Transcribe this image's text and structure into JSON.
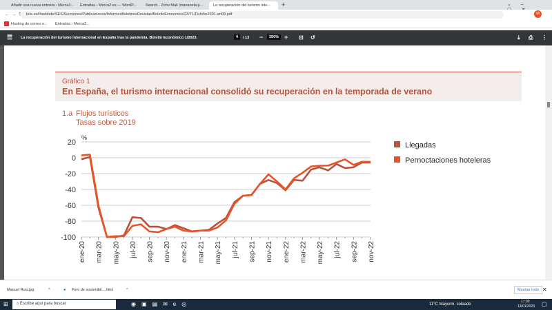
{
  "browser": {
    "tabs": [
      "Añadir una nueva entrada ‹ Merca2...",
      "Entradas ‹ Merca2.es — WordP...",
      "Search - Zoho Mail (mananela.p...",
      "La recuperación del turismo inte..."
    ],
    "url": "bde.es/f/webbde/SES/Secciones/Publicaciones/InformesBoletinesRevistas/BoletinEconomico/23/T1/Fich/be2301-art08.pdf",
    "bookmarks": [
      "Hosting de correo e...",
      "Entradas ‹ Merca2..."
    ],
    "profile": "M"
  },
  "pdf": {
    "title": "La recuperación del turismo internacional en España tras la pandemia. Boletín Económico 1/2023.",
    "page": "4",
    "pages": "/ 13",
    "zoom": "250%"
  },
  "figure": {
    "label": "Gráfico 1",
    "headline": "En España, el turismo internacional consolidó su recuperación en la temporada de verano",
    "subtitle_num": "1.a",
    "subtitle": "Flujos turísticos",
    "subtitle2": "Tasas sobre 2019",
    "unit": "%"
  },
  "chart_data": {
    "type": "line",
    "ylim": [
      -100,
      20
    ],
    "yticks": [
      20,
      0,
      -20,
      -40,
      -60,
      -80,
      -100
    ],
    "grid": true,
    "legend": "right",
    "x": [
      "ene-20",
      "feb-20",
      "mar-20",
      "abr-20",
      "may-20",
      "jun-20",
      "jul-20",
      "ago-20",
      "sep-20",
      "oct-20",
      "nov-20",
      "dic-20",
      "ene-21",
      "feb-21",
      "mar-21",
      "abr-21",
      "may-21",
      "jun-21",
      "jul-21",
      "ago-21",
      "sep-21",
      "oct-21",
      "nov-21",
      "dic-21",
      "ene-22",
      "feb-22",
      "mar-22",
      "abr-22",
      "may-22",
      "jun-22",
      "jul-22",
      "ago-22",
      "sep-22",
      "oct-22",
      "nov-22"
    ],
    "xticklabels": [
      "ene-20",
      "mar-20",
      "may-20",
      "jul-20",
      "sep-20",
      "nov-20",
      "ene-21",
      "mar-21",
      "may-21",
      "jul-21",
      "sep-21",
      "nov-21",
      "ene-22",
      "mar-22",
      "may-22",
      "jul-22",
      "sep-22",
      "nov-22"
    ],
    "series": [
      {
        "name": "Llegadas",
        "color": "#b5533c",
        "values": [
          -2,
          1,
          -63,
          -100,
          -100,
          -98,
          -75,
          -76,
          -87,
          -87,
          -90,
          -85,
          -89,
          -93,
          -92,
          -91,
          -83,
          -76,
          -56,
          -48,
          -47,
          -33,
          -28,
          -32,
          -41,
          -28,
          -29,
          -15,
          -12,
          -16,
          -8,
          -13,
          -12,
          -6,
          -6
        ]
      },
      {
        "name": "Pernoctaciones hoteleras",
        "color": "#e8542a",
        "values": [
          3,
          4,
          -60,
          -100,
          -99,
          -99,
          -86,
          -84,
          -93,
          -94,
          -90,
          -87,
          -92,
          -93,
          -92,
          -92,
          -88,
          -79,
          -58,
          -48,
          -47,
          -33,
          -21,
          -30,
          -40,
          -26,
          -19,
          -11,
          -10,
          -10,
          -6,
          -2,
          -9,
          -5,
          -5
        ]
      }
    ]
  },
  "downloads": {
    "items": [
      "Manuel Ruiz.jpg",
      "Foro de sostenibil....html"
    ],
    "show_all": "Mostrar todo"
  },
  "taskbar": {
    "search": "Escribe aquí para buscar",
    "weather": "11°C Mayorm. soleado",
    "time": "17:30",
    "date": "13/01/2023"
  }
}
